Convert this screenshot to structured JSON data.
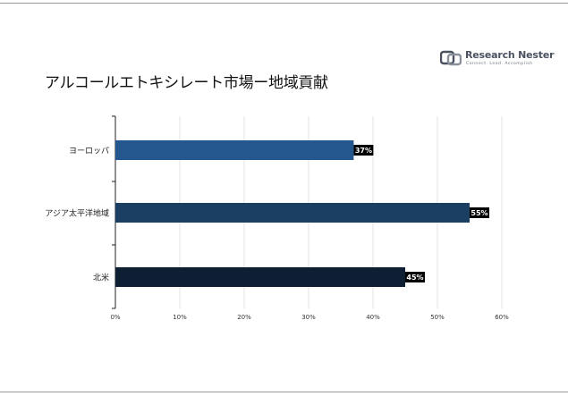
{
  "header": {
    "brand_name": "Research Nester",
    "brand_tagline": "Connect. Lead. Accomplish",
    "brand_color": "#4a5260"
  },
  "chart_data": {
    "type": "bar",
    "orientation": "horizontal",
    "title": "アルコールエトキシレート市場ー地域貢献",
    "xlabel": "",
    "ylabel": "",
    "categories": [
      "ヨーロッパ",
      "アジア太平洋地域",
      "北米"
    ],
    "values": [
      37,
      55,
      45
    ],
    "data_labels": [
      "37%",
      "55%",
      "45%"
    ],
    "bar_colors": [
      "#24578d",
      "#1b3f63",
      "#0f1f33"
    ],
    "xlim": [
      0,
      60
    ],
    "xticks": [
      "0%",
      "10%",
      "20%",
      "30%",
      "40%",
      "50%",
      "60%"
    ],
    "grid": true,
    "legend": "none"
  }
}
